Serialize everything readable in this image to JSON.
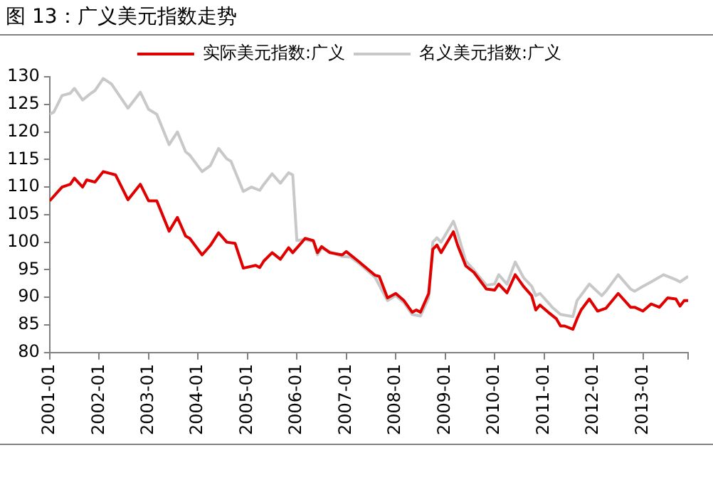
{
  "chart_data": {
    "type": "line",
    "title": "图 13：广义美元指数走势",
    "legend": "top",
    "grid": false,
    "marker": "none",
    "line_style": "solid",
    "xlim": [
      "2001-01",
      "2013-12"
    ],
    "xticks": [
      "2001-01",
      "2002-01",
      "2003-01",
      "2004-01",
      "2005-01",
      "2006-01",
      "2007-01",
      "2008-01",
      "2009-01",
      "2010-01",
      "2011-01",
      "2012-01",
      "2013-01",
      {
        "value": "2013-12",
        "label": null
      }
    ],
    "ylim": [
      80,
      130
    ],
    "yticks": [
      80,
      85,
      90,
      95,
      100,
      105,
      110,
      115,
      120,
      125,
      130
    ],
    "series": [
      {
        "name": "实际美元指数:广义",
        "color": "#e00000",
        "x": [
          "2001-01",
          "2001-04",
          "2001-06",
          "2001-07",
          "2001-09",
          "2001-10",
          "2001-12",
          "2002-02",
          "2002-05",
          "2002-08",
          "2002-11",
          "2003-01",
          "2003-03",
          "2003-06",
          "2003-08",
          "2003-10",
          "2003-11",
          "2004-02",
          "2004-04",
          "2004-06",
          "2004-08",
          "2004-10",
          "2004-12",
          "2005-03",
          "2005-04",
          "2005-05",
          "2005-07",
          "2005-09",
          "2005-11",
          "2005-12",
          "2006-02",
          "2006-03",
          "2006-05",
          "2006-06",
          "2006-07",
          "2006-09",
          "2006-12",
          "2007-01",
          "2007-04",
          "2007-08",
          "2007-09",
          "2007-11",
          "2008-01",
          "2008-03",
          "2008-05",
          "2008-06",
          "2008-07",
          "2008-09",
          "2008-10",
          "2008-11",
          "2008-12",
          "2009-03",
          "2009-04",
          "2009-06",
          "2009-08",
          "2009-11",
          "2010-01",
          "2010-02",
          "2010-04",
          "2010-06",
          "2010-08",
          "2010-10",
          "2010-11",
          "2010-12",
          "2011-02",
          "2011-04",
          "2011-05",
          "2011-06",
          "2011-08",
          "2011-09",
          "2011-10",
          "2011-12",
          "2012-02",
          "2012-04",
          "2012-07",
          "2012-10",
          "2012-11",
          "2013-01",
          "2013-03",
          "2013-05",
          "2013-07",
          "2013-09",
          "2013-10",
          "2013-11",
          "2013-12"
        ],
        "values": [
          107.5,
          110.0,
          110.5,
          111.6,
          110.0,
          111.3,
          110.9,
          112.8,
          112.2,
          107.7,
          110.5,
          107.5,
          107.5,
          102.0,
          104.5,
          101.1,
          100.7,
          97.7,
          99.4,
          101.7,
          100.0,
          99.8,
          95.3,
          95.8,
          95.4,
          96.6,
          98.1,
          96.9,
          99.0,
          98.1,
          99.8,
          100.7,
          100.3,
          98.1,
          99.2,
          98.1,
          97.7,
          98.3,
          96.5,
          94.0,
          93.8,
          89.9,
          90.7,
          89.4,
          87.3,
          87.7,
          87.3,
          90.7,
          98.7,
          99.5,
          98.1,
          101.9,
          99.5,
          95.7,
          94.5,
          91.5,
          91.3,
          92.4,
          90.8,
          94.1,
          92.0,
          90.3,
          87.7,
          88.6,
          87.3,
          86.1,
          84.8,
          84.8,
          84.2,
          86.1,
          87.7,
          89.7,
          87.5,
          88.0,
          90.7,
          88.2,
          88.2,
          87.5,
          88.8,
          88.2,
          89.9,
          89.7,
          88.4,
          89.4,
          89.4
        ]
      },
      {
        "name": "名义美元指数:广义",
        "color": "#c8c8c8",
        "x": [
          "2001-01",
          "2001-02",
          "2001-04",
          "2001-06",
          "2001-07",
          "2001-09",
          "2001-11",
          "2001-12",
          "2002-02",
          "2002-04",
          "2002-08",
          "2002-11",
          "2003-01",
          "2003-03",
          "2003-06",
          "2003-08",
          "2003-10",
          "2003-11",
          "2004-02",
          "2004-04",
          "2004-06",
          "2004-08",
          "2004-09",
          "2004-12",
          "2005-02",
          "2005-04",
          "2005-05",
          "2005-07",
          "2005-09",
          "2005-11",
          "2005-12",
          "2006-01",
          "2006-03",
          "2006-05",
          "2006-06",
          "2006-07",
          "2006-09",
          "2006-12",
          "2007-02",
          "2007-04",
          "2007-08",
          "2007-11",
          "2008-01",
          "2008-03",
          "2008-05",
          "2008-07",
          "2008-09",
          "2008-10",
          "2008-11",
          "2008-12",
          "2009-03",
          "2009-04",
          "2009-06",
          "2009-08",
          "2009-11",
          "2010-01",
          "2010-02",
          "2010-04",
          "2010-06",
          "2010-08",
          "2010-10",
          "2010-11",
          "2010-12",
          "2011-03",
          "2011-05",
          "2011-08",
          "2011-09",
          "2011-12",
          "2012-03",
          "2012-04",
          "2012-07",
          "2012-10",
          "2012-11",
          "2013-01",
          "2013-03",
          "2013-06",
          "2013-09",
          "2013-10",
          "2013-12"
        ],
        "values": [
          123.2,
          123.6,
          126.6,
          127.0,
          127.9,
          125.8,
          127.0,
          127.5,
          129.7,
          128.7,
          124.3,
          127.2,
          124.1,
          123.2,
          117.7,
          120.0,
          116.4,
          115.8,
          112.8,
          113.9,
          117.0,
          115.1,
          114.7,
          109.2,
          110.0,
          109.4,
          110.5,
          112.4,
          110.7,
          112.6,
          112.2,
          100.3,
          100.5,
          100.1,
          97.7,
          98.9,
          98.3,
          97.4,
          97.3,
          96.2,
          93.6,
          89.4,
          90.3,
          89.0,
          86.9,
          86.6,
          89.9,
          100.0,
          100.8,
          100.0,
          103.8,
          101.7,
          96.6,
          94.9,
          92.2,
          92.4,
          94.1,
          92.4,
          96.4,
          93.6,
          92.0,
          90.3,
          90.7,
          88.2,
          86.9,
          86.5,
          89.4,
          92.4,
          90.3,
          91.1,
          94.1,
          91.5,
          91.1,
          92.0,
          92.8,
          94.1,
          93.2,
          92.8,
          93.8
        ]
      }
    ]
  }
}
